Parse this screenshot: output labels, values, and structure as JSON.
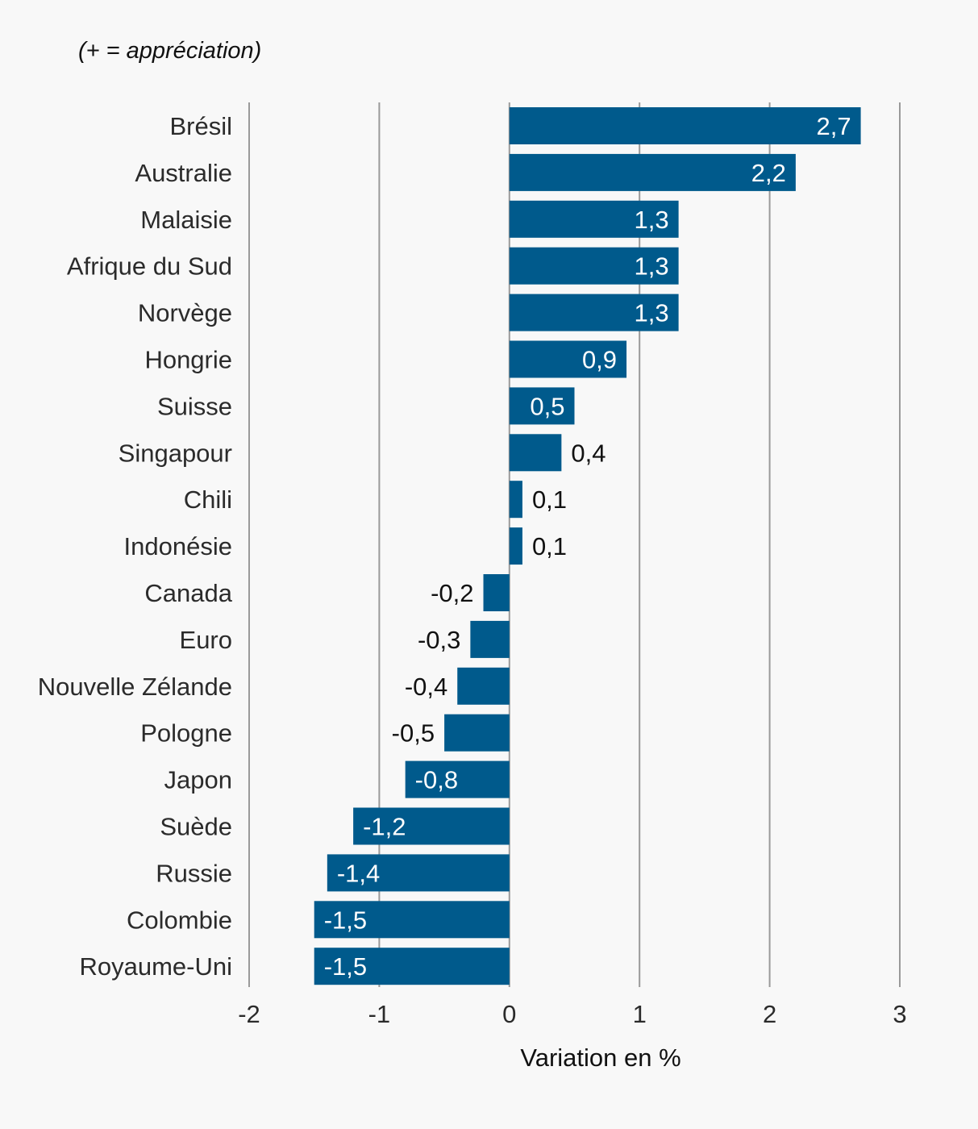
{
  "note": "(+ = appréciation)",
  "chart_data": {
    "type": "bar",
    "orientation": "horizontal",
    "categories": [
      "Brésil",
      "Australie",
      "Malaisie",
      "Afrique du Sud",
      "Norvège",
      "Hongrie",
      "Suisse",
      "Singapour",
      "Chili",
      "Indonésie",
      "Canada",
      "Euro",
      "Nouvelle Zélande",
      "Pologne",
      "Japon",
      "Suède",
      "Russie",
      "Colombie",
      "Royaume-Uni"
    ],
    "values": [
      2.7,
      2.2,
      1.3,
      1.3,
      1.3,
      0.9,
      0.5,
      0.4,
      0.1,
      0.1,
      -0.2,
      -0.3,
      -0.4,
      -0.5,
      -0.8,
      -1.2,
      -1.4,
      -1.5,
      -1.5
    ],
    "value_labels": [
      "2,7",
      "2,2",
      "1,3",
      "1,3",
      "1,3",
      "0,9",
      "0,5",
      "0,4",
      "0,1",
      "0,1",
      "-0,2",
      "-0,3",
      "-0,4",
      "-0,5",
      "-0,8",
      "-1,2",
      "-1,4",
      "-1,5",
      "-1,5"
    ],
    "xlim": [
      -2,
      3
    ],
    "xticks": [
      -2,
      -1,
      0,
      1,
      2,
      3
    ],
    "xtick_labels": [
      "-2",
      "-1",
      "0",
      "1",
      "2",
      "3"
    ],
    "xlabel": "Variation en %",
    "ylabel": "",
    "grid": true,
    "bar_color": "#005a8c",
    "label_color_inside": "#ffffff",
    "label_color_outside": "#111111"
  }
}
